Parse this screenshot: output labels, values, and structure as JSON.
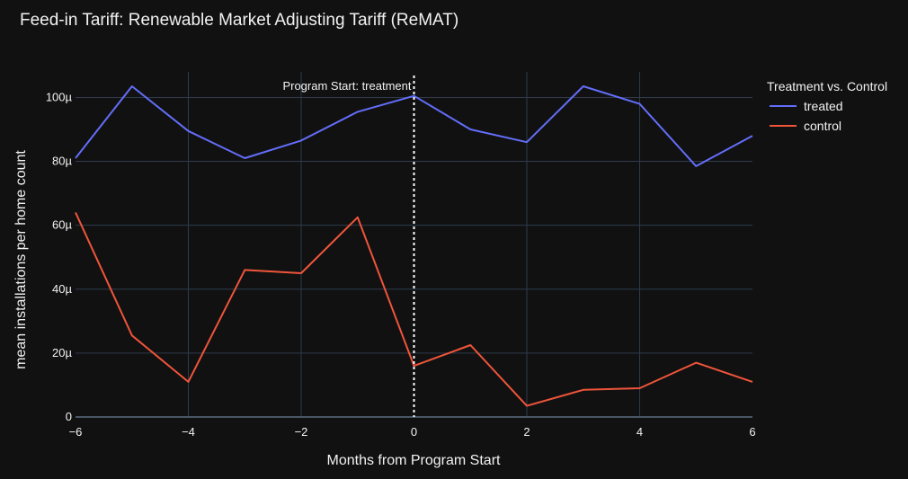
{
  "chart_data": {
    "type": "line",
    "title": "Feed-in Tariff: Renewable Market Adjusting Tariff (ReMAT)",
    "xlabel": "Months from Program Start",
    "ylabel": "mean installations per home count",
    "xlim": [
      -6,
      6
    ],
    "ylim": [
      0,
      0.000108
    ],
    "x_ticks": [
      -6,
      -4,
      -2,
      0,
      2,
      4,
      6
    ],
    "x_tick_labels": [
      "−6",
      "−4",
      "−2",
      "0",
      "2",
      "4",
      "6"
    ],
    "y_ticks": [
      0,
      2e-05,
      4e-05,
      6e-05,
      8e-05,
      0.0001
    ],
    "y_tick_labels": [
      "0",
      "20µ",
      "40µ",
      "60µ",
      "80µ",
      "100µ"
    ],
    "grid": true,
    "legend_title": "Treatment vs. Control",
    "legend_position": "top-right outside",
    "x": [
      -6,
      -5,
      -4,
      -3,
      -2,
      -1,
      0,
      1,
      2,
      3,
      4,
      5,
      6
    ],
    "series": [
      {
        "name": "treated",
        "color": "#636efa",
        "values": [
          8.1e-05,
          0.0001035,
          8.95e-05,
          8.1e-05,
          8.65e-05,
          9.55e-05,
          0.0001005,
          9e-05,
          8.6e-05,
          0.0001035,
          9.8e-05,
          7.85e-05,
          8.8e-05
        ]
      },
      {
        "name": "control",
        "color": "#ef553b",
        "values": [
          6.4e-05,
          2.55e-05,
          1.1e-05,
          4.6e-05,
          4.5e-05,
          6.25e-05,
          1.6e-05,
          2.25e-05,
          3.5e-06,
          8.5e-06,
          9e-06,
          1.7e-05,
          1.1e-05
        ]
      }
    ],
    "annotations": [
      {
        "text": "Program Start: treatment",
        "x": 0,
        "style": "dashed vertical line",
        "color": "#ffffff"
      }
    ]
  }
}
